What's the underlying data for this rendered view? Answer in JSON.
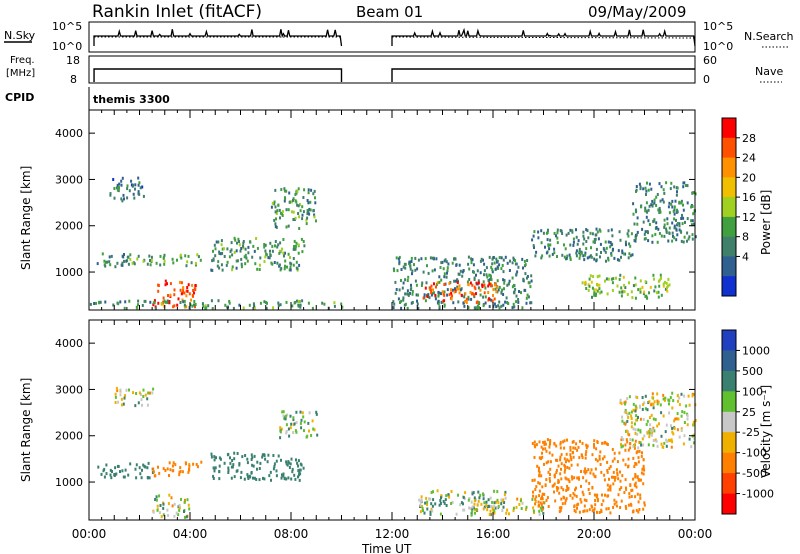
{
  "header": {
    "station": "Rankin Inlet (fitACF)",
    "beam": "Beam 01",
    "date": "09/May/2009"
  },
  "strips": {
    "nsky_label": "N.Sky",
    "nsky_ticks": [
      "10^5",
      "10^0"
    ],
    "nsearch_label": "N.Search",
    "nsearch_ticks": [
      "10^5",
      "10^0"
    ],
    "freq_label_top": "Freq.",
    "freq_label_unit": "[MHz]",
    "freq_ticks": [
      "18",
      "8"
    ],
    "nave_label": "Nave",
    "nave_ticks": [
      "60",
      "0"
    ],
    "cpid_label": "CPID",
    "cpid_value": "themis 3300"
  },
  "axes": {
    "y_label": "Slant Range [km]",
    "y_ticks": [
      "4000",
      "3000",
      "2000",
      "1000"
    ],
    "x_ticks": [
      "00:00",
      "04:00",
      "08:00",
      "12:00",
      "16:00",
      "20:00",
      "00:00"
    ],
    "x_label": "Time UT"
  },
  "colorbars": {
    "power": {
      "label": "Power [dB]",
      "ticks": [
        "28",
        "24",
        "20",
        "16",
        "12",
        "8",
        "4"
      ],
      "colors": [
        "#ff0000",
        "#ff5000",
        "#ff9000",
        "#f0c000",
        "#a0d020",
        "#40a040",
        "#40806a",
        "#306090",
        "#1030d0"
      ]
    },
    "velocity": {
      "label": "Velocity [m s⁻¹]",
      "ticks": [
        "1000",
        "500",
        "100",
        "25",
        "-25",
        "-100",
        "-500",
        "-1000"
      ],
      "colors": [
        "#2040c0",
        "#306090",
        "#3a8070",
        "#60c030",
        "#c8c8c8",
        "#f0b000",
        "#ff8000",
        "#ff4000",
        "#ff0000"
      ]
    }
  },
  "chart_data": [
    {
      "type": "heatmap",
      "title": "Power [dB]",
      "xlabel": "Time UT",
      "ylabel": "Slant Range [km]",
      "xlim": [
        0,
        24
      ],
      "ylim": [
        180,
        4500
      ],
      "data_gap_hours": [
        10.0,
        12.0
      ],
      "regions": [
        {
          "t": [
            0.3,
            1.5
          ],
          "r": [
            1050,
            1400
          ],
          "value": 8
        },
        {
          "t": [
            0.8,
            2.2
          ],
          "r": [
            2500,
            3000
          ],
          "value": 6
        },
        {
          "t": [
            2.5,
            4.2
          ],
          "r": [
            200,
            800
          ],
          "value": 28
        },
        {
          "t": [
            1.5,
            4.5
          ],
          "r": [
            1100,
            1350
          ],
          "value": 12
        },
        {
          "t": [
            4.8,
            8.5
          ],
          "r": [
            1000,
            1700
          ],
          "value": 10
        },
        {
          "t": [
            7.2,
            9.0
          ],
          "r": [
            1900,
            2800
          ],
          "value": 10
        },
        {
          "t": [
            0.0,
            10.0
          ],
          "r": [
            180,
            350
          ],
          "value": 10
        },
        {
          "t": [
            12.0,
            17.5
          ],
          "r": [
            180,
            1300
          ],
          "value": 8
        },
        {
          "t": [
            13.2,
            16.2
          ],
          "r": [
            300,
            750
          ],
          "value": 28
        },
        {
          "t": [
            17.5,
            21.5
          ],
          "r": [
            1200,
            1900
          ],
          "value": 8
        },
        {
          "t": [
            19.5,
            23.0
          ],
          "r": [
            400,
            900
          ],
          "value": 14
        },
        {
          "t": [
            21.5,
            24.0
          ],
          "r": [
            1600,
            2900
          ],
          "value": 8
        }
      ]
    },
    {
      "type": "heatmap",
      "title": "Velocity [m s⁻¹]",
      "xlabel": "Time UT",
      "ylabel": "Slant Range [km]",
      "xlim": [
        0,
        24
      ],
      "ylim": [
        180,
        4500
      ],
      "data_gap_hours": [
        10.0,
        12.0
      ],
      "regions": [
        {
          "t": [
            0.3,
            2.5
          ],
          "r": [
            1050,
            1400
          ],
          "value": 300
        },
        {
          "t": [
            1.0,
            2.5
          ],
          "r": [
            2600,
            3000
          ],
          "value": 0
        },
        {
          "t": [
            2.5,
            4.5
          ],
          "r": [
            1100,
            1400
          ],
          "value": -200
        },
        {
          "t": [
            4.8,
            8.5
          ],
          "r": [
            1000,
            1600
          ],
          "value": 300
        },
        {
          "t": [
            7.5,
            9.0
          ],
          "r": [
            1900,
            2500
          ],
          "value": 60
        },
        {
          "t": [
            2.5,
            4.0
          ],
          "r": [
            200,
            700
          ],
          "value": 0
        },
        {
          "t": [
            13.0,
            16.5
          ],
          "r": [
            250,
            800
          ],
          "value": 60
        },
        {
          "t": [
            15.0,
            18.0
          ],
          "r": [
            250,
            600
          ],
          "value": 0
        },
        {
          "t": [
            17.5,
            22.0
          ],
          "r": [
            300,
            1900
          ],
          "value": -300
        },
        {
          "t": [
            21.0,
            24.0
          ],
          "r": [
            1700,
            2900
          ],
          "value": 0
        }
      ]
    }
  ]
}
